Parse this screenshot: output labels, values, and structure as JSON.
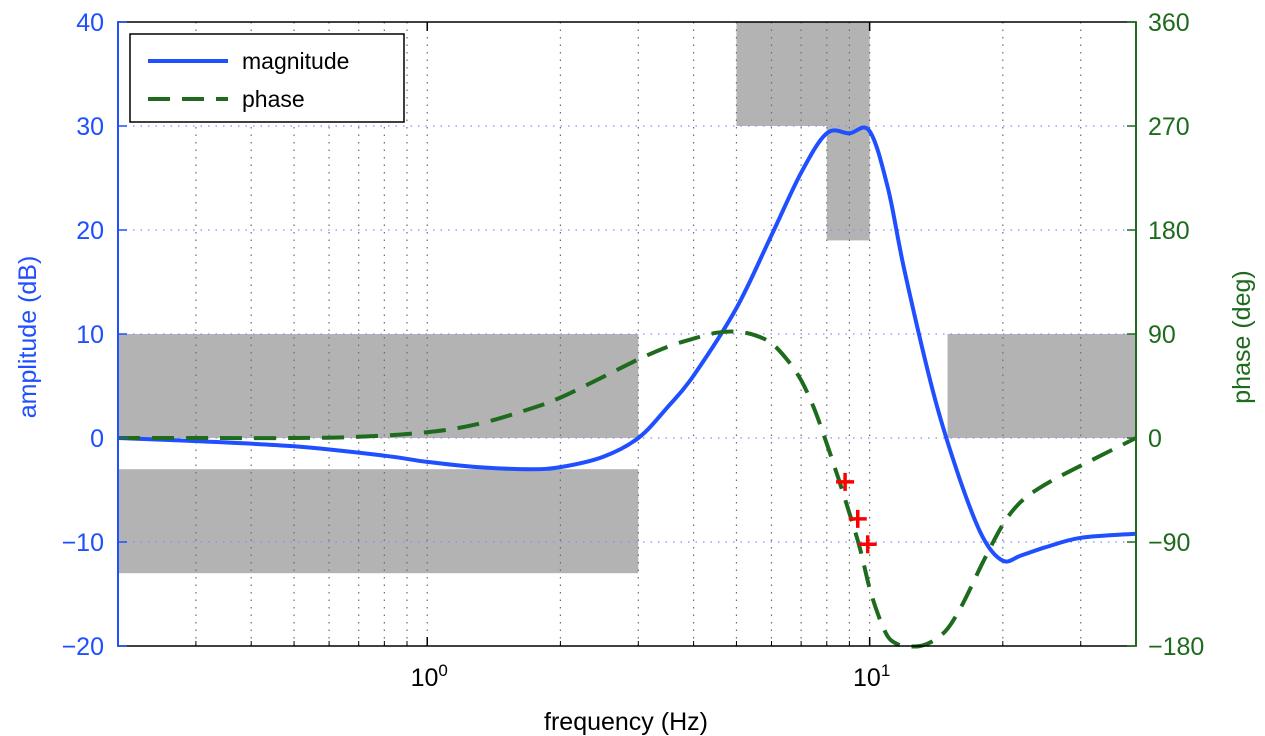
{
  "chart_data": {
    "type": "line",
    "xlabel": "frequency (Hz)",
    "ylabel_left": "amplitude (dB)",
    "ylabel_right": "phase (deg)",
    "x_scale": "log",
    "xlim": [
      0.2,
      40
    ],
    "ylim_left": [
      -20,
      40
    ],
    "ylim_right": [
      -180,
      360
    ],
    "x_ticks": [
      {
        "value": 1,
        "base": "10",
        "exp": "0"
      },
      {
        "value": 10,
        "base": "10",
        "exp": "1"
      }
    ],
    "y_ticks_left": [
      "−20",
      "−10",
      "0",
      "10",
      "20",
      "30",
      "40"
    ],
    "y_tick_values_left": [
      -20,
      -10,
      0,
      10,
      20,
      30,
      40
    ],
    "y_ticks_right": [
      "−180",
      "−90",
      "0",
      "90",
      "180",
      "270",
      "360"
    ],
    "y_tick_values_right": [
      -180,
      -90,
      0,
      90,
      180,
      270,
      360
    ],
    "grid": true,
    "legend": {
      "placement": "top-left",
      "entries": [
        {
          "label": "magnitude",
          "style": "solid",
          "color": "#1f4fff"
        },
        {
          "label": "phase",
          "style": "dashed",
          "color": "#1e6b1e"
        }
      ]
    },
    "series": [
      {
        "name": "magnitude",
        "axis": "left",
        "color": "#1f4fff",
        "x": [
          0.2,
          0.3,
          0.5,
          0.8,
          1.0,
          1.3,
          1.7,
          2.0,
          2.5,
          3.0,
          3.5,
          4.0,
          5.0,
          6.0,
          7.0,
          8.0,
          9.0,
          10.0,
          11.0,
          12.0,
          14.0,
          16.0,
          18.0,
          20.0,
          22.0,
          25.0,
          30.0,
          40.0
        ],
        "values": [
          0,
          -0.3,
          -0.8,
          -1.7,
          -2.3,
          -2.8,
          -3.0,
          -2.8,
          -1.8,
          0,
          3.0,
          6.0,
          12.5,
          19.5,
          25.5,
          29.3,
          29.3,
          29.5,
          24.0,
          16.0,
          4.0,
          -4.0,
          -9.5,
          -11.8,
          -11.3,
          -10.5,
          -9.6,
          -9.2
        ]
      },
      {
        "name": "phase",
        "axis": "right",
        "color": "#1e6b1e",
        "x": [
          0.2,
          0.3,
          0.5,
          0.7,
          1.0,
          1.3,
          1.7,
          2.0,
          2.5,
          3.0,
          3.5,
          4.0,
          4.5,
          5.0,
          5.5,
          6.0,
          6.5,
          7.0,
          7.5,
          8.0,
          8.5,
          9.0,
          9.5,
          10.0,
          10.5,
          11.0,
          11.5,
          12.0,
          13.0,
          14.0,
          15.0,
          16.0,
          17.0,
          18.0,
          20.0,
          22.0,
          25.0,
          30.0,
          40.0
        ],
        "values": [
          0,
          0,
          0,
          1,
          5,
          12,
          25,
          35,
          53,
          68,
          79,
          86,
          91,
          92,
          89,
          82,
          68,
          50,
          25,
          -5,
          -35,
          -65,
          -95,
          -130,
          -155,
          -172,
          -178,
          -180,
          -180,
          -175,
          -165,
          -148,
          -128,
          -108,
          -75,
          -55,
          -40,
          -24,
          0
        ]
      }
    ],
    "markers": {
      "symbol": "+",
      "color": "#ff0000",
      "points": [
        {
          "x": 8.8,
          "y": -38
        },
        {
          "x": 9.4,
          "y": -70
        },
        {
          "x": 9.9,
          "y": -92
        }
      ]
    },
    "shaded_regions": [
      {
        "x": [
          0.2,
          3.0
        ],
        "y": [
          0,
          10
        ],
        "axis": "left"
      },
      {
        "x": [
          0.2,
          3.0
        ],
        "y": [
          -13,
          -3
        ],
        "axis": "left"
      },
      {
        "x": [
          5.0,
          10.0
        ],
        "y": [
          30,
          40
        ],
        "axis": "left"
      },
      {
        "x": [
          8.0,
          10.0
        ],
        "y": [
          19,
          30
        ],
        "axis": "left"
      },
      {
        "x": [
          15.0,
          40.0
        ],
        "y": [
          0,
          10
        ],
        "axis": "left"
      }
    ],
    "colors": {
      "left_axis": "#1f4fff",
      "right_axis": "#1e6b1e",
      "shade": "#b3b3b3",
      "grid": "#6b6b6b"
    }
  }
}
